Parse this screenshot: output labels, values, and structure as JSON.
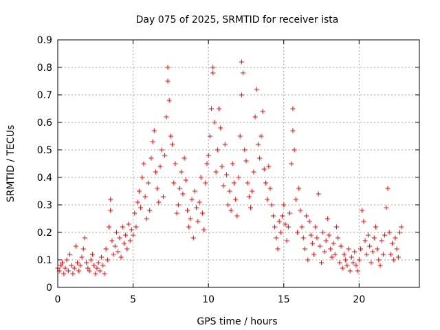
{
  "chart_data": {
    "type": "scatter",
    "title": "Day 075 of 2025, SRMTID for receiver ista",
    "xlabel": "GPS time / hours",
    "ylabel": "SRMTID / TECUs",
    "xlim": [
      0,
      24.0
    ],
    "ylim": [
      0,
      0.9
    ],
    "xticks": [
      0,
      5,
      10,
      15,
      20
    ],
    "xtick_labels": [
      "0",
      "5",
      "10",
      "15",
      "20"
    ],
    "yticks": [
      0,
      0.1,
      0.2,
      0.3,
      0.4,
      0.5,
      0.6,
      0.7,
      0.8,
      0.9
    ],
    "ytick_labels": [
      "0",
      "0.1",
      "0.2",
      "0.3",
      "0.4",
      "0.5",
      "0.6",
      "0.7",
      "0.8",
      "0.9"
    ],
    "grid": true,
    "marker": "plus",
    "marker_color": "#ff0000",
    "series": [
      {
        "name": "SRMTID",
        "points": [
          [
            0.0,
            0.07
          ],
          [
            0.1,
            0.06
          ],
          [
            0.2,
            0.08
          ],
          [
            0.3,
            0.09
          ],
          [
            0.4,
            0.05
          ],
          [
            0.5,
            0.07
          ],
          [
            0.6,
            0.1
          ],
          [
            0.7,
            0.06
          ],
          [
            0.8,
            0.12
          ],
          [
            0.9,
            0.08
          ],
          [
            1.0,
            0.05
          ],
          [
            1.1,
            0.07
          ],
          [
            1.2,
            0.15
          ],
          [
            1.3,
            0.09
          ],
          [
            1.4,
            0.06
          ],
          [
            1.5,
            0.08
          ],
          [
            1.6,
            0.11
          ],
          [
            1.7,
            0.14
          ],
          [
            1.8,
            0.18
          ],
          [
            1.9,
            0.09
          ],
          [
            2.0,
            0.07
          ],
          [
            2.1,
            0.06
          ],
          [
            2.2,
            0.1
          ],
          [
            2.3,
            0.12
          ],
          [
            2.4,
            0.08
          ],
          [
            2.5,
            0.05
          ],
          [
            2.6,
            0.07
          ],
          [
            2.7,
            0.09
          ],
          [
            2.8,
            0.06
          ],
          [
            2.9,
            0.11
          ],
          [
            3.0,
            0.08
          ],
          [
            3.1,
            0.05
          ],
          [
            3.2,
            0.14
          ],
          [
            3.3,
            0.1
          ],
          [
            3.4,
            0.22
          ],
          [
            3.5,
            0.32
          ],
          [
            3.5,
            0.28
          ],
          [
            3.6,
            0.17
          ],
          [
            3.7,
            0.12
          ],
          [
            3.8,
            0.15
          ],
          [
            3.9,
            0.2
          ],
          [
            4.0,
            0.13
          ],
          [
            4.1,
            0.18
          ],
          [
            4.2,
            0.11
          ],
          [
            4.3,
            0.22
          ],
          [
            4.4,
            0.16
          ],
          [
            4.5,
            0.19
          ],
          [
            4.6,
            0.14
          ],
          [
            4.7,
            0.23
          ],
          [
            4.8,
            0.17
          ],
          [
            4.9,
            0.21
          ],
          [
            5.0,
            0.19
          ],
          [
            5.1,
            0.27
          ],
          [
            5.2,
            0.22
          ],
          [
            5.3,
            0.31
          ],
          [
            5.4,
            0.35
          ],
          [
            5.5,
            0.29
          ],
          [
            5.6,
            0.4
          ],
          [
            5.7,
            0.45
          ],
          [
            5.8,
            0.33
          ],
          [
            5.9,
            0.25
          ],
          [
            6.0,
            0.38
          ],
          [
            6.1,
            0.28
          ],
          [
            6.2,
            0.47
          ],
          [
            6.3,
            0.53
          ],
          [
            6.4,
            0.57
          ],
          [
            6.5,
            0.42
          ],
          [
            6.6,
            0.36
          ],
          [
            6.7,
            0.31
          ],
          [
            6.8,
            0.44
          ],
          [
            6.9,
            0.5
          ],
          [
            7.0,
            0.33
          ],
          [
            7.1,
            0.48
          ],
          [
            7.2,
            0.62
          ],
          [
            7.3,
            0.75
          ],
          [
            7.3,
            0.8
          ],
          [
            7.4,
            0.68
          ],
          [
            7.5,
            0.55
          ],
          [
            7.6,
            0.52
          ],
          [
            7.7,
            0.38
          ],
          [
            7.8,
            0.45
          ],
          [
            7.9,
            0.27
          ],
          [
            8.0,
            0.3
          ],
          [
            8.1,
            0.36
          ],
          [
            8.2,
            0.42
          ],
          [
            8.3,
            0.34
          ],
          [
            8.4,
            0.47
          ],
          [
            8.5,
            0.39
          ],
          [
            8.6,
            0.28
          ],
          [
            8.7,
            0.22
          ],
          [
            8.8,
            0.25
          ],
          [
            8.9,
            0.32
          ],
          [
            9.0,
            0.18
          ],
          [
            9.1,
            0.35
          ],
          [
            9.2,
            0.29
          ],
          [
            9.3,
            0.24
          ],
          [
            9.4,
            0.31
          ],
          [
            9.5,
            0.4
          ],
          [
            9.6,
            0.27
          ],
          [
            9.7,
            0.21
          ],
          [
            9.8,
            0.38
          ],
          [
            9.9,
            0.45
          ],
          [
            10.0,
            0.48
          ],
          [
            10.1,
            0.55
          ],
          [
            10.2,
            0.65
          ],
          [
            10.3,
            0.78
          ],
          [
            10.3,
            0.8
          ],
          [
            10.4,
            0.6
          ],
          [
            10.5,
            0.42
          ],
          [
            10.6,
            0.5
          ],
          [
            10.7,
            0.65
          ],
          [
            10.8,
            0.58
          ],
          [
            10.9,
            0.44
          ],
          [
            11.0,
            0.37
          ],
          [
            11.1,
            0.52
          ],
          [
            11.2,
            0.41
          ],
          [
            11.3,
            0.3
          ],
          [
            11.4,
            0.35
          ],
          [
            11.5,
            0.28
          ],
          [
            11.6,
            0.45
          ],
          [
            11.7,
            0.38
          ],
          [
            11.8,
            0.32
          ],
          [
            11.9,
            0.26
          ],
          [
            12.0,
            0.4
          ],
          [
            12.1,
            0.55
          ],
          [
            12.2,
            0.7
          ],
          [
            12.2,
            0.82
          ],
          [
            12.3,
            0.78
          ],
          [
            12.4,
            0.5
          ],
          [
            12.5,
            0.46
          ],
          [
            12.6,
            0.38
          ],
          [
            12.7,
            0.33
          ],
          [
            12.8,
            0.29
          ],
          [
            12.9,
            0.35
          ],
          [
            13.0,
            0.42
          ],
          [
            13.1,
            0.62
          ],
          [
            13.2,
            0.72
          ],
          [
            13.3,
            0.52
          ],
          [
            13.4,
            0.47
          ],
          [
            13.5,
            0.55
          ],
          [
            13.6,
            0.64
          ],
          [
            13.7,
            0.43
          ],
          [
            13.8,
            0.38
          ],
          [
            13.9,
            0.32
          ],
          [
            14.0,
            0.44
          ],
          [
            14.1,
            0.36
          ],
          [
            14.2,
            0.3
          ],
          [
            14.3,
            0.26
          ],
          [
            14.4,
            0.22
          ],
          [
            14.5,
            0.18
          ],
          [
            14.6,
            0.14
          ],
          [
            14.7,
            0.24
          ],
          [
            14.8,
            0.2
          ],
          [
            14.9,
            0.26
          ],
          [
            15.0,
            0.3
          ],
          [
            15.1,
            0.23
          ],
          [
            15.2,
            0.17
          ],
          [
            15.3,
            0.22
          ],
          [
            15.4,
            0.27
          ],
          [
            15.5,
            0.45
          ],
          [
            15.6,
            0.65
          ],
          [
            15.6,
            0.57
          ],
          [
            15.7,
            0.5
          ],
          [
            15.8,
            0.32
          ],
          [
            15.9,
            0.2
          ],
          [
            16.0,
            0.36
          ],
          [
            16.1,
            0.28
          ],
          [
            16.2,
            0.22
          ],
          [
            16.3,
            0.18
          ],
          [
            16.4,
            0.14
          ],
          [
            16.5,
            0.26
          ],
          [
            16.6,
            0.1
          ],
          [
            16.7,
            0.24
          ],
          [
            16.8,
            0.19
          ],
          [
            16.9,
            0.16
          ],
          [
            17.0,
            0.12
          ],
          [
            17.1,
            0.22
          ],
          [
            17.2,
            0.18
          ],
          [
            17.3,
            0.34
          ],
          [
            17.4,
            0.15
          ],
          [
            17.5,
            0.09
          ],
          [
            17.6,
            0.2
          ],
          [
            17.7,
            0.13
          ],
          [
            17.8,
            0.17
          ],
          [
            17.9,
            0.25
          ],
          [
            18.0,
            0.19
          ],
          [
            18.1,
            0.14
          ],
          [
            18.2,
            0.11
          ],
          [
            18.3,
            0.16
          ],
          [
            18.4,
            0.12
          ],
          [
            18.5,
            0.22
          ],
          [
            18.6,
            0.18
          ],
          [
            18.7,
            0.09
          ],
          [
            18.8,
            0.15
          ],
          [
            18.9,
            0.07
          ],
          [
            19.0,
            0.12
          ],
          [
            19.1,
            0.1
          ],
          [
            19.2,
            0.08
          ],
          [
            19.3,
            0.14
          ],
          [
            19.4,
            0.06
          ],
          [
            19.5,
            0.11
          ],
          [
            19.6,
            0.09
          ],
          [
            19.7,
            0.13
          ],
          [
            19.8,
            0.08
          ],
          [
            19.9,
            0.06
          ],
          [
            20.0,
            0.1
          ],
          [
            20.1,
            0.14
          ],
          [
            20.2,
            0.28
          ],
          [
            20.3,
            0.24
          ],
          [
            20.4,
            0.17
          ],
          [
            20.5,
            0.12
          ],
          [
            20.6,
            0.19
          ],
          [
            20.7,
            0.15
          ],
          [
            20.8,
            0.09
          ],
          [
            20.9,
            0.13
          ],
          [
            21.0,
            0.18
          ],
          [
            21.1,
            0.22
          ],
          [
            21.2,
            0.14
          ],
          [
            21.3,
            0.1
          ],
          [
            21.4,
            0.08
          ],
          [
            21.5,
            0.17
          ],
          [
            21.6,
            0.12
          ],
          [
            21.7,
            0.19
          ],
          [
            21.8,
            0.29
          ],
          [
            21.9,
            0.36
          ],
          [
            22.0,
            0.2
          ],
          [
            22.1,
            0.12
          ],
          [
            22.2,
            0.16
          ],
          [
            22.3,
            0.1
          ],
          [
            22.4,
            0.18
          ],
          [
            22.5,
            0.14
          ],
          [
            22.6,
            0.11
          ],
          [
            22.7,
            0.2
          ],
          [
            22.8,
            0.22
          ]
        ]
      }
    ]
  }
}
